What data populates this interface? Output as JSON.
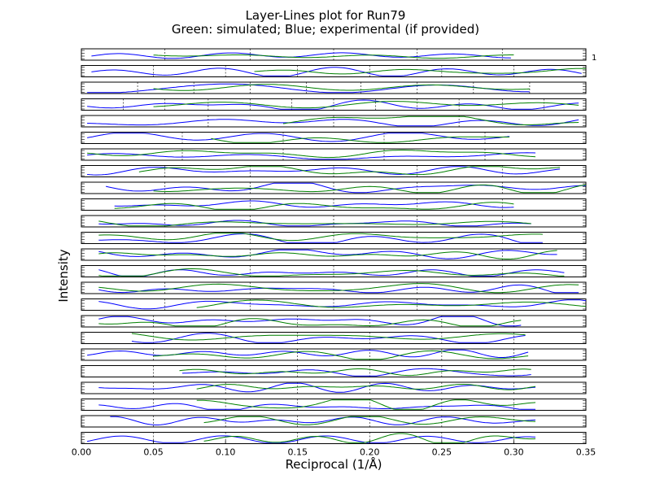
{
  "chart_data": {
    "type": "line",
    "title": "Layer-Lines plot for Run79",
    "subtitle": "Green: simulated; Blue; experimental (if provided)",
    "xlabel": "Reciprocal (1/Å)",
    "ylabel": "Intensity",
    "xlim": [
      0.0,
      0.35
    ],
    "xticks": [
      "0.00",
      "0.05",
      "0.10",
      "0.15",
      "0.20",
      "0.25",
      "0.30",
      "0.35"
    ],
    "annotation": "1",
    "colors": {
      "simulated": "#008000",
      "experimental": "#0000ff"
    },
    "layer_lines": [
      {
        "blue_start": 0.007,
        "blue_end": 0.298,
        "green_start": 0.05,
        "green_end": 0.3,
        "vlines": [
          0.058,
          0.117,
          0.175,
          0.233,
          0.292
        ]
      },
      {
        "blue_start": 0.007,
        "blue_end": 0.347,
        "green_start": 0.12,
        "green_end": 0.35,
        "vlines": [
          0.05,
          0.1,
          0.15,
          0.2,
          0.25,
          0.3
        ]
      },
      {
        "blue_start": 0.004,
        "blue_end": 0.311,
        "green_start": 0.05,
        "green_end": 0.311,
        "vlines": [
          0.039,
          0.078,
          0.117,
          0.156,
          0.194,
          0.233,
          0.272,
          0.311
        ]
      },
      {
        "blue_start": 0.004,
        "blue_end": 0.345,
        "green_start": 0.05,
        "green_end": 0.345,
        "vlines": [
          0.029,
          0.058,
          0.088,
          0.117,
          0.146,
          0.175,
          0.204,
          0.233,
          0.262,
          0.292,
          0.321
        ]
      },
      {
        "blue_start": 0.004,
        "blue_end": 0.345,
        "green_start": 0.14,
        "green_end": 0.345,
        "vlines": [
          0.088,
          0.175,
          0.262
        ]
      },
      {
        "blue_start": 0.004,
        "blue_end": 0.297,
        "green_start": 0.09,
        "green_end": 0.297,
        "vlines": [
          0.07,
          0.14,
          0.21,
          0.28
        ]
      },
      {
        "blue_start": 0.004,
        "blue_end": 0.315,
        "green_start": 0.004,
        "green_end": 0.315,
        "vlines": [
          0.07,
          0.14,
          0.21,
          0.28
        ]
      },
      {
        "blue_start": 0.004,
        "blue_end": 0.332,
        "green_start": 0.04,
        "green_end": 0.332,
        "vlines": [
          0.058,
          0.117,
          0.175,
          0.233,
          0.292
        ]
      },
      {
        "blue_start": 0.017,
        "blue_end": 0.35,
        "green_start": 0.05,
        "green_end": 0.35,
        "vlines": [
          0.058,
          0.117,
          0.175,
          0.233,
          0.292
        ]
      },
      {
        "blue_start": 0.023,
        "blue_end": 0.3,
        "green_start": 0.023,
        "green_end": 0.3,
        "vlines": [
          0.058,
          0.117,
          0.175,
          0.233,
          0.292
        ]
      },
      {
        "blue_start": 0.012,
        "blue_end": 0.312,
        "green_start": 0.012,
        "green_end": 0.312,
        "vlines": [
          0.058,
          0.117,
          0.175,
          0.233,
          0.292
        ]
      },
      {
        "blue_start": 0.012,
        "blue_end": 0.32,
        "green_start": 0.012,
        "green_end": 0.32,
        "vlines": [
          0.058,
          0.117,
          0.175,
          0.233,
          0.292
        ]
      },
      {
        "blue_start": 0.012,
        "blue_end": 0.33,
        "green_start": 0.012,
        "green_end": 0.33,
        "vlines": [
          0.058,
          0.117,
          0.175,
          0.233,
          0.292
        ]
      },
      {
        "blue_start": 0.012,
        "blue_end": 0.335,
        "green_start": 0.012,
        "green_end": 0.335,
        "vlines": [
          0.058,
          0.117,
          0.175,
          0.233,
          0.292
        ]
      },
      {
        "blue_start": 0.012,
        "blue_end": 0.345,
        "green_start": 0.012,
        "green_end": 0.345,
        "vlines": [
          0.058,
          0.117,
          0.175,
          0.233,
          0.292
        ]
      },
      {
        "blue_start": 0.012,
        "blue_end": 0.35,
        "green_start": 0.08,
        "green_end": 0.35,
        "vlines": [
          0.058,
          0.117,
          0.175,
          0.233,
          0.292
        ]
      },
      {
        "blue_start": 0.012,
        "blue_end": 0.305,
        "green_start": 0.012,
        "green_end": 0.305,
        "vlines": [
          0.05,
          0.1,
          0.15,
          0.2,
          0.25,
          0.3
        ]
      },
      {
        "blue_start": 0.035,
        "blue_end": 0.308,
        "green_start": 0.035,
        "green_end": 0.308,
        "vlines": [
          0.05,
          0.1,
          0.15,
          0.2,
          0.25,
          0.3
        ]
      },
      {
        "blue_start": 0.004,
        "blue_end": 0.31,
        "green_start": 0.05,
        "green_end": 0.31,
        "vlines": [
          0.05,
          0.1,
          0.15,
          0.2,
          0.25,
          0.3
        ]
      },
      {
        "blue_start": 0.07,
        "blue_end": 0.312,
        "green_start": 0.068,
        "green_end": 0.312,
        "vlines": [
          0.05,
          0.1,
          0.15,
          0.2,
          0.25,
          0.3
        ]
      },
      {
        "blue_start": 0.012,
        "blue_end": 0.315,
        "green_start": 0.08,
        "green_end": 0.315,
        "vlines": [
          0.05,
          0.1,
          0.15,
          0.2,
          0.25,
          0.3
        ]
      },
      {
        "blue_start": 0.012,
        "blue_end": 0.315,
        "green_start": 0.08,
        "green_end": 0.315,
        "vlines": [
          0.05,
          0.1,
          0.15,
          0.2,
          0.25,
          0.3
        ]
      },
      {
        "blue_start": 0.02,
        "blue_end": 0.315,
        "green_start": 0.085,
        "green_end": 0.315,
        "vlines": [
          0.05,
          0.1,
          0.15,
          0.2,
          0.25,
          0.3
        ]
      },
      {
        "blue_start": 0.004,
        "blue_end": 0.315,
        "green_start": 0.085,
        "green_end": 0.315,
        "vlines": [
          0.05,
          0.1,
          0.15,
          0.2,
          0.25,
          0.3
        ]
      }
    ]
  }
}
